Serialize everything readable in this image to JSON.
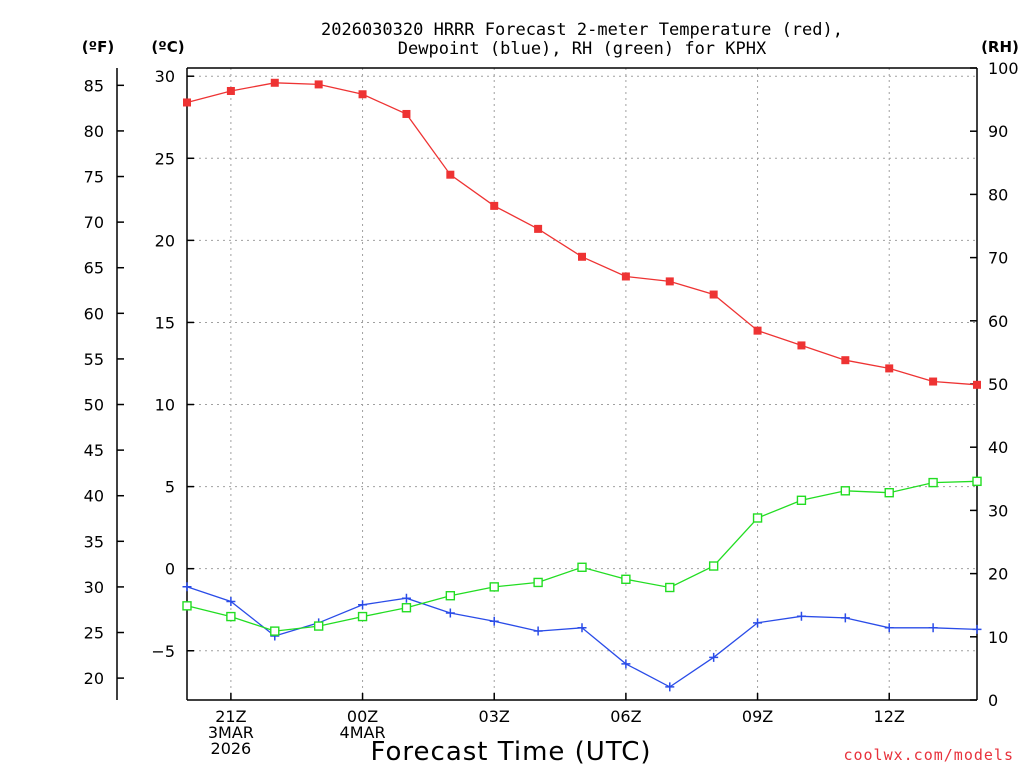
{
  "chart_data": {
    "type": "line",
    "title_lines": [
      "2026030320 HRRR Forecast 2-meter Temperature (red),",
      "Dewpoint (blue), RH (green) for KPHX"
    ],
    "xlabel": "Forecast Time (UTC)",
    "credit": "coolwx.com/models",
    "units": {
      "fahrenheit": "(ºF)",
      "celsius": "(ºC)",
      "rh": "(RH)"
    },
    "x_range": [
      0,
      18
    ],
    "x_ticks": [
      {
        "x": 1,
        "labels": [
          "21Z",
          "3MAR",
          "2026"
        ]
      },
      {
        "x": 4,
        "labels": [
          "00Z",
          "4MAR"
        ]
      },
      {
        "x": 7,
        "labels": [
          "03Z"
        ]
      },
      {
        "x": 10,
        "labels": [
          "06Z"
        ]
      },
      {
        "x": 13,
        "labels": [
          "09Z"
        ]
      },
      {
        "x": 16,
        "labels": [
          "12Z"
        ]
      }
    ],
    "celsius_axis": {
      "range": [
        -8,
        30.5
      ],
      "ticks": [
        30,
        25,
        20,
        15,
        10,
        5,
        0,
        -5
      ],
      "tick_labels": [
        "30",
        "25",
        "20",
        "15",
        "10",
        "5",
        "0",
        "−5"
      ]
    },
    "fahrenheit_axis": {
      "ticks": [
        85,
        80,
        75,
        70,
        65,
        60,
        55,
        50,
        45,
        40,
        35,
        30,
        25,
        20
      ],
      "tick_labels": [
        "85",
        "80",
        "75",
        "70",
        "65",
        "60",
        "55",
        "50",
        "45",
        "40",
        "35",
        "30",
        "25",
        "20"
      ]
    },
    "rh_axis": {
      "range": [
        0,
        100
      ],
      "ticks": [
        100,
        90,
        80,
        70,
        60,
        50,
        40,
        30,
        20,
        10,
        0
      ],
      "tick_labels": [
        "100",
        "90",
        "80",
        "70",
        "60",
        "50",
        "40",
        "30",
        "20",
        "10",
        "0"
      ]
    },
    "series": [
      {
        "name": "Temperature",
        "axis": "celsius",
        "color": "#ee3333",
        "marker": "filled-square",
        "values": [
          28.4,
          29.1,
          29.6,
          29.5,
          28.9,
          27.7,
          24.0,
          22.1,
          20.7,
          19.0,
          17.8,
          17.5,
          16.7,
          14.5,
          13.6,
          12.7,
          12.2,
          11.4,
          11.2
        ]
      },
      {
        "name": "Dewpoint",
        "axis": "celsius",
        "color": "#2a4ce8",
        "marker": "plus",
        "values": [
          -1.1,
          -2.0,
          -4.1,
          -3.3,
          -2.2,
          -1.8,
          -2.7,
          -3.2,
          -3.8,
          -3.6,
          -5.8,
          -7.2,
          -5.4,
          -3.3,
          -2.9,
          -3.0,
          -3.6,
          -3.6,
          -3.7
        ]
      },
      {
        "name": "RH",
        "axis": "rh",
        "color": "#22dd22",
        "marker": "open-square",
        "values": [
          14.9,
          13.2,
          10.9,
          11.7,
          13.2,
          14.6,
          16.5,
          17.9,
          18.6,
          21.0,
          19.1,
          17.8,
          21.2,
          28.8,
          31.6,
          33.1,
          32.8,
          34.4,
          34.6
        ]
      }
    ]
  }
}
